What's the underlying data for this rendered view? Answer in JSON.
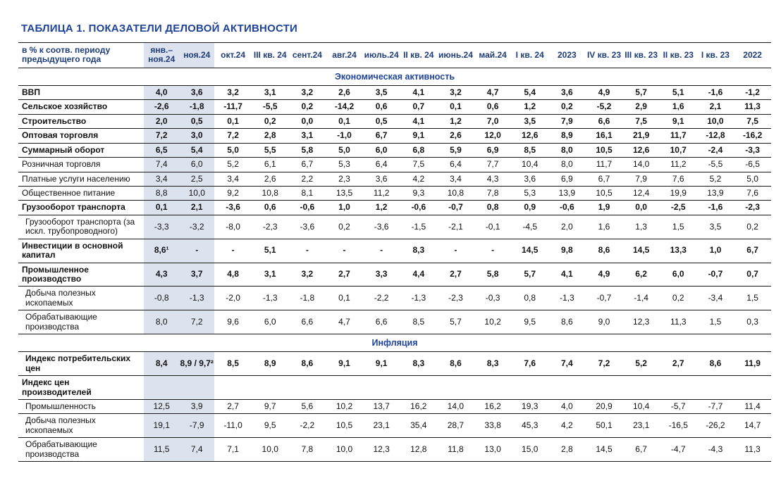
{
  "title": "ТАБЛИЦА 1. ПОКАЗАТЕЛИ ДЕЛОВОЙ АКТИВНОСТИ",
  "corner_header": "в % к соотв. периоду предыдущего года",
  "colors": {
    "accent": "#1f4398",
    "header_text": "#1e3c78",
    "highlight_band": "#dde2ef",
    "border": "#1a1a1a",
    "text": "#111111"
  },
  "columns": [
    "янв.–ноя.24",
    "ноя.24",
    "окт.24",
    "III кв. 24",
    "сент.24",
    "авг.24",
    "июль.24",
    "II кв. 24",
    "июнь.24",
    "май.24",
    "I кв. 24",
    "2023",
    "IV кв. 23",
    "III кв. 23",
    "II кв. 23",
    "I кв. 23",
    "2022"
  ],
  "highlighted_columns": 2,
  "sections": [
    {
      "label": "Экономическая активность",
      "rows": [
        {
          "label": "ВВП",
          "bold": true,
          "indent": false,
          "values": [
            "4,0",
            "3,6",
            "3,2",
            "3,1",
            "3,2",
            "2,6",
            "3,5",
            "4,1",
            "3,2",
            "4,7",
            "5,4",
            "3,6",
            "4,9",
            "5,7",
            "5,1",
            "-1,6",
            "-1,2"
          ]
        },
        {
          "label": "Сельское хозяйство",
          "bold": true,
          "indent": false,
          "values": [
            "-2,6",
            "-1,8",
            "-11,7",
            "-5,5",
            "0,2",
            "-14,2",
            "0,6",
            "0,7",
            "0,1",
            "0,6",
            "1,2",
            "0,2",
            "-5,2",
            "2,9",
            "1,6",
            "2,1",
            "11,3"
          ]
        },
        {
          "label": "Строительство",
          "bold": true,
          "indent": false,
          "values": [
            "2,0",
            "0,5",
            "0,1",
            "0,2",
            "0,0",
            "0,1",
            "0,5",
            "4,1",
            "1,2",
            "7,0",
            "3,5",
            "7,9",
            "6,6",
            "7,5",
            "9,1",
            "10,0",
            "7,5"
          ]
        },
        {
          "label": "Оптовая торговля",
          "bold": true,
          "indent": false,
          "values": [
            "7,2",
            "3,0",
            "7,2",
            "2,8",
            "3,1",
            "-1,0",
            "6,7",
            "9,1",
            "2,6",
            "12,0",
            "12,6",
            "8,9",
            "16,1",
            "21,9",
            "11,7",
            "-12,8",
            "-16,2"
          ]
        },
        {
          "label": "Суммарный оборот",
          "bold": true,
          "indent": false,
          "values": [
            "6,5",
            "5,4",
            "5,0",
            "5,5",
            "5,8",
            "5,0",
            "6,0",
            "6,8",
            "5,9",
            "6,9",
            "8,5",
            "8,0",
            "10,5",
            "12,6",
            "10,7",
            "-2,4",
            "-3,3"
          ]
        },
        {
          "label": "Розничная торговля",
          "bold": false,
          "indent": false,
          "values": [
            "7,4",
            "6,0",
            "5,2",
            "6,1",
            "6,7",
            "5,3",
            "6,4",
            "7,5",
            "6,4",
            "7,7",
            "10,4",
            "8,0",
            "11,7",
            "14,0",
            "11,2",
            "-5,5",
            "-6,5"
          ]
        },
        {
          "label": "Платные услуги населению",
          "bold": false,
          "indent": false,
          "values": [
            "3,4",
            "2,5",
            "3,4",
            "2,6",
            "2,2",
            "2,3",
            "3,6",
            "4,2",
            "3,4",
            "4,3",
            "3,6",
            "6,9",
            "6,7",
            "7,9",
            "7,6",
            "5,2",
            "5,0"
          ]
        },
        {
          "label": "Общественное питание",
          "bold": false,
          "indent": false,
          "values": [
            "8,8",
            "10,0",
            "9,2",
            "10,8",
            "8,1",
            "13,5",
            "11,2",
            "9,3",
            "10,8",
            "7,8",
            "5,3",
            "13,9",
            "10,5",
            "12,4",
            "19,9",
            "13,9",
            "7,6"
          ]
        },
        {
          "label": "Грузооборот транспорта",
          "bold": true,
          "indent": false,
          "values": [
            "0,1",
            "2,1",
            "-3,6",
            "0,6",
            "-0,6",
            "1,0",
            "1,2",
            "-0,6",
            "-0,7",
            "0,8",
            "0,9",
            "-0,6",
            "1,9",
            "0,0",
            "-2,5",
            "-1,6",
            "-2,3"
          ]
        },
        {
          "label": "Грузооборот транспорта (за искл. трубопроводного)",
          "bold": false,
          "indent": true,
          "values": [
            "-3,3",
            "-3,2",
            "-8,0",
            "-2,3",
            "-3,6",
            "0,2",
            "-3,6",
            "-1,5",
            "-2,1",
            "-0,1",
            "-4,5",
            "2,0",
            "1,6",
            "1,3",
            "1,5",
            "3,5",
            "0,2"
          ]
        },
        {
          "label": "Инвестиции в основной капитал",
          "bold": true,
          "indent": false,
          "values": [
            "8,6¹",
            "-",
            "-",
            "5,1",
            "-",
            "-",
            "-",
            "8,3",
            "-",
            "-",
            "14,5",
            "9,8",
            "8,6",
            "14,5",
            "13,3",
            "1,0",
            "6,7"
          ]
        },
        {
          "label": "Промышленное производство",
          "bold": true,
          "indent": false,
          "values": [
            "4,3",
            "3,7",
            "4,8",
            "3,1",
            "3,2",
            "2,7",
            "3,3",
            "4,4",
            "2,7",
            "5,8",
            "5,7",
            "4,1",
            "4,9",
            "6,2",
            "6,0",
            "-0,7",
            "0,7"
          ]
        },
        {
          "label": "Добыча полезных ископаемых",
          "bold": false,
          "indent": true,
          "values": [
            "-0,8",
            "-1,3",
            "-2,0",
            "-1,3",
            "-1,8",
            "0,1",
            "-2,2",
            "-1,3",
            "-2,3",
            "-0,3",
            "0,8",
            "-1,3",
            "-0,7",
            "-1,4",
            "0,2",
            "-3,4",
            "1,5"
          ]
        },
        {
          "label": "Обрабатывающие производства",
          "bold": false,
          "indent": true,
          "values": [
            "8,0",
            "7,2",
            "9,6",
            "6,0",
            "6,6",
            "4,7",
            "6,6",
            "8,5",
            "5,7",
            "10,2",
            "9,5",
            "8,6",
            "9,0",
            "12,3",
            "11,3",
            "1,5",
            "0,3"
          ]
        }
      ]
    },
    {
      "label": "Инфляция",
      "rows": [
        {
          "label": "Индекс потребительских цен",
          "bold": true,
          "indent": true,
          "values": [
            "8,4",
            "8,9 / 9,7²",
            "8,5",
            "8,9",
            "8,6",
            "9,1",
            "9,1",
            "8,3",
            "8,6",
            "8,3",
            "7,6",
            "7,4",
            "7,2",
            "5,2",
            "2,7",
            "8,6",
            "11,9"
          ]
        },
        {
          "label": "Индекс цен производителей",
          "bold": true,
          "indent": false,
          "values": [
            "",
            "",
            "",
            "",
            "",
            "",
            "",
            "",
            "",
            "",
            "",
            "",
            "",
            "",
            "",
            "",
            ""
          ]
        },
        {
          "label": "Промышленность",
          "bold": false,
          "indent": true,
          "values": [
            "12,5",
            "3,9",
            "2,7",
            "9,7",
            "5,6",
            "10,2",
            "13,7",
            "16,2",
            "14,0",
            "16,2",
            "19,3",
            "4,0",
            "20,9",
            "10,4",
            "-5,7",
            "-7,7",
            "11,4"
          ]
        },
        {
          "label": "Добыча полезных ископаемых",
          "bold": false,
          "indent": true,
          "values": [
            "19,1",
            "-7,9",
            "-11,0",
            "9,5",
            "-2,2",
            "10,5",
            "23,1",
            "35,4",
            "28,7",
            "33,8",
            "45,3",
            "4,2",
            "50,1",
            "23,1",
            "-16,5",
            "-26,2",
            "14,7"
          ]
        },
        {
          "label": "Обрабатывающие производства",
          "bold": false,
          "indent": true,
          "values": [
            "11,5",
            "7,4",
            "7,1",
            "10,0",
            "7,8",
            "10,0",
            "12,3",
            "12,8",
            "11,8",
            "13,0",
            "15,0",
            "2,8",
            "14,5",
            "6,7",
            "-4,7",
            "-4,3",
            "11,3"
          ]
        }
      ]
    }
  ]
}
